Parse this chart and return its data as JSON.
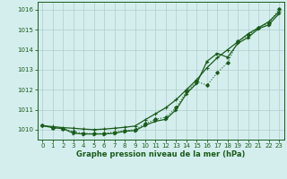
{
  "title": "Graphe pression niveau de la mer (hPa)",
  "bg_color": "#d4eeee",
  "grid_color": "#b0cccc",
  "line_color": "#1a5c1a",
  "x": [
    0,
    1,
    2,
    3,
    4,
    5,
    6,
    7,
    8,
    9,
    10,
    11,
    12,
    13,
    14,
    15,
    16,
    17,
    18,
    19,
    20,
    21,
    22,
    23
  ],
  "line_upper": [
    1010.2,
    1010.15,
    1010.1,
    1010.07,
    1010.03,
    1010.0,
    1010.03,
    1010.07,
    1010.12,
    1010.18,
    1010.5,
    1010.8,
    1011.1,
    1011.5,
    1012.0,
    1012.5,
    1013.1,
    1013.6,
    1014.0,
    1014.4,
    1014.8,
    1015.1,
    1015.4,
    1015.9
  ],
  "line_wiggly": [
    1010.2,
    1010.1,
    1010.05,
    1009.9,
    1009.82,
    1009.8,
    1009.82,
    1009.88,
    1009.95,
    1010.0,
    1010.3,
    1010.52,
    1010.62,
    1011.1,
    1011.9,
    1012.42,
    1012.22,
    1012.85,
    1013.35,
    1014.42,
    1014.72,
    1015.12,
    1015.32,
    1016.02
  ],
  "line_smooth": [
    1010.2,
    1010.1,
    1010.05,
    1009.82,
    1009.78,
    1009.78,
    1009.78,
    1009.82,
    1009.92,
    1009.95,
    1010.22,
    1010.42,
    1010.52,
    1011.0,
    1011.8,
    1012.32,
    1013.42,
    1013.82,
    1013.62,
    1014.32,
    1014.62,
    1015.05,
    1015.25,
    1015.8
  ],
  "ylim": [
    1009.5,
    1016.4
  ],
  "yticks": [
    1010,
    1011,
    1012,
    1013,
    1014,
    1015,
    1016
  ],
  "xticks": [
    0,
    1,
    2,
    3,
    4,
    5,
    6,
    7,
    8,
    9,
    10,
    11,
    12,
    13,
    14,
    15,
    16,
    17,
    18,
    19,
    20,
    21,
    22,
    23
  ],
  "xlabel_fontsize": 6,
  "tick_fontsize": 5
}
